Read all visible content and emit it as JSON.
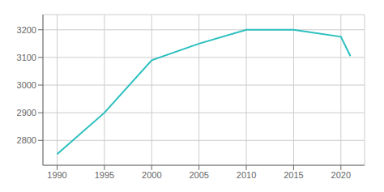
{
  "chart_data": {
    "type": "line",
    "x": [
      1990,
      1995,
      2000,
      2005,
      2010,
      2015,
      2020,
      2021
    ],
    "values": [
      2750,
      2900,
      3090,
      3150,
      3200,
      3200,
      3175,
      3105
    ],
    "color": "#2abfbf",
    "xlim": [
      1988.5,
      2022.5
    ],
    "xticks": [
      1990,
      1995,
      2000,
      2005,
      2010,
      2015,
      2020
    ],
    "ylim": [
      2710,
      3255
    ],
    "yticks": [
      2800,
      2900,
      3000,
      3100,
      3200
    ],
    "grid": true
  }
}
